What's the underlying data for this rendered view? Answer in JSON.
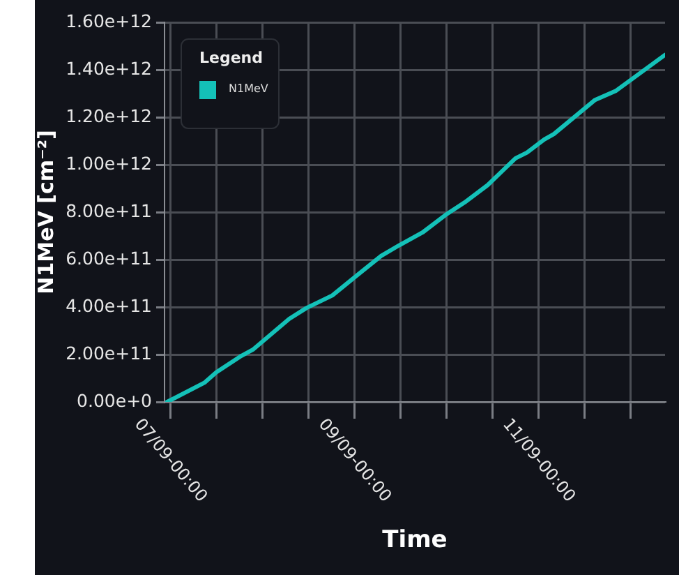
{
  "chart_data": {
    "type": "line",
    "xlabel": "Time",
    "ylabel": "N1MeV [cm⁻²]",
    "legend_title": "Legend",
    "legend": "top left",
    "grid": true,
    "marker": "none",
    "line_style": "solid",
    "xlim": [
      "--09-06T22:30",
      "--09-12T09:00"
    ],
    "xticks": [
      {
        "value": "--09-07T00:00",
        "label": "07/09-00:00"
      },
      {
        "value": "--09-07T12:00",
        "label": null
      },
      {
        "value": "--09-08T00:00",
        "label": null
      },
      {
        "value": "--09-08T12:00",
        "label": null
      },
      {
        "value": "--09-09T00:00",
        "label": "09/09-00:00"
      },
      {
        "value": "--09-09T12:00",
        "label": null
      },
      {
        "value": "--09-10T00:00",
        "label": null
      },
      {
        "value": "--09-10T12:00",
        "label": null
      },
      {
        "value": "--09-11T00:00",
        "label": "11/09-00:00"
      },
      {
        "value": "--09-11T12:00",
        "label": null
      },
      {
        "value": "--09-12T00:00",
        "label": null
      }
    ],
    "ylim": [
      0,
      1600000000000
    ],
    "yticks": [
      {
        "value": 0,
        "label": "0.00e+0"
      },
      {
        "value": 200000000000,
        "label": "2.00e+11"
      },
      {
        "value": 400000000000,
        "label": "4.00e+11"
      },
      {
        "value": 600000000000,
        "label": "6.00e+11"
      },
      {
        "value": 800000000000,
        "label": "8.00e+11"
      },
      {
        "value": 1000000000000,
        "label": "1.00e+12"
      },
      {
        "value": 1200000000000,
        "label": "1.20e+12"
      },
      {
        "value": 1400000000000,
        "label": "1.40e+12"
      },
      {
        "value": 1600000000000,
        "label": "1.60e+12"
      }
    ],
    "x": [
      "--09-06T23:10",
      "--09-07T09:00",
      "--09-07T12:00",
      "--09-07T18:30",
      "--09-07T21:30",
      "--09-08T07:00",
      "--09-08T11:30",
      "--09-08T18:15",
      "--09-08T23:30",
      "--09-09T07:00",
      "--09-09T11:45",
      "--09-09T17:45",
      "--09-09T23:45",
      "--09-10T04:45",
      "--09-10T10:45",
      "--09-10T18:00",
      "--09-10T21:00",
      "--09-11T01:30",
      "--09-11T04:00",
      "--09-11T14:45",
      "--09-11T20:15",
      "--09-12T09:00"
    ],
    "series": [
      {
        "name": "N1MeV",
        "color": "#14c1b8",
        "values": [
          0,
          82000000000,
          125000000000,
          194000000000,
          220000000000,
          350000000000,
          396000000000,
          449000000000,
          518000000000,
          616000000000,
          661000000000,
          714000000000,
          788000000000,
          841000000000,
          914000000000,
          1027000000000,
          1051000000000,
          1106000000000,
          1129000000000,
          1273000000000,
          1312000000000,
          1463000000000
        ]
      }
    ]
  }
}
